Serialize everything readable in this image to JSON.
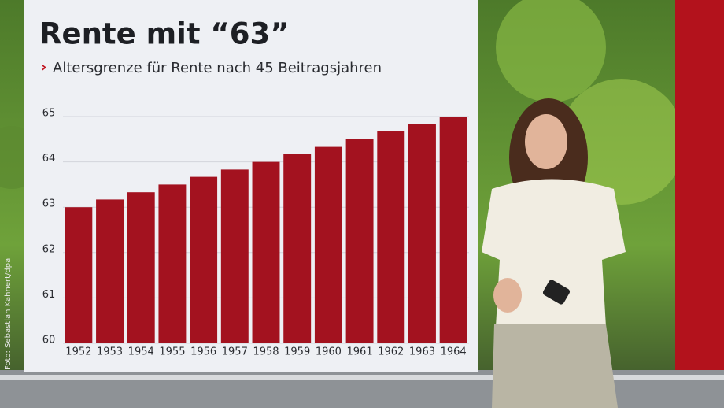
{
  "chart_data": {
    "type": "bar",
    "title": "Rente mit “63”",
    "subtitle": "Altersgrenze für Rente nach 45 Beitragsjahren",
    "categories": [
      "1952",
      "1953",
      "1954",
      "1955",
      "1956",
      "1957",
      "1958",
      "1959",
      "1960",
      "1961",
      "1962",
      "1963",
      "1964"
    ],
    "values": [
      63,
      63.17,
      63.33,
      63.5,
      63.67,
      63.83,
      64,
      64.17,
      64.33,
      64.5,
      64.67,
      64.83,
      65
    ],
    "color": "#a3121f",
    "ylim": [
      60,
      65
    ],
    "yticks": [
      60,
      61,
      62,
      63,
      64,
      65
    ],
    "grid": true
  },
  "photo_credit": "Foto: Sebastian Kahnert/dpa"
}
